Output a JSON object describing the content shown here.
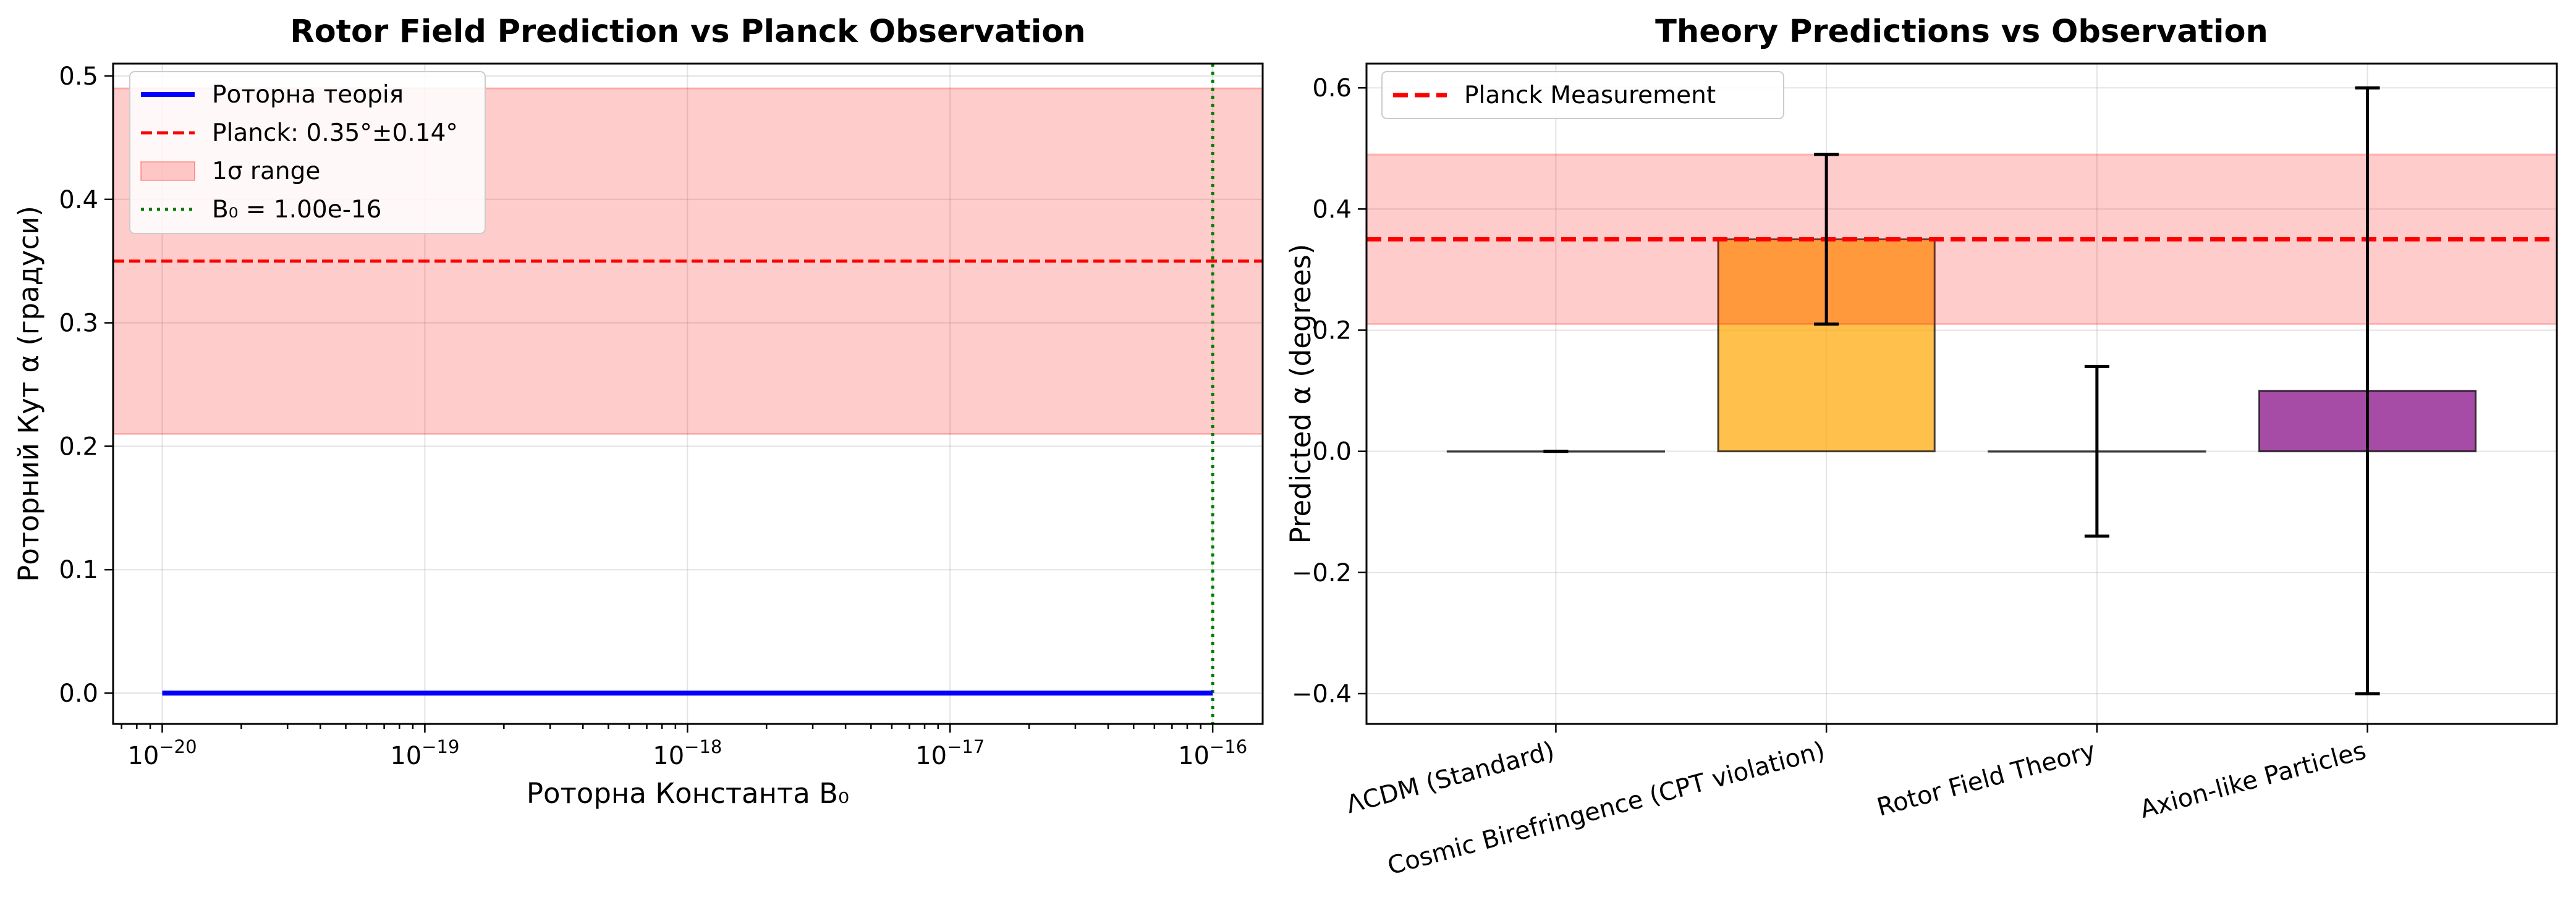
{
  "chart_data": [
    {
      "type": "line",
      "title": "Rotor Field Prediction vs Planck Observation",
      "xlabel": "Роторна Константа B₀",
      "ylabel": "Роторний Кут α (градуси)",
      "x_scale": "log",
      "xlim": [
        6.5e-21,
        1.55e-16
      ],
      "ylim": [
        -0.025,
        0.51
      ],
      "x_ticks": [
        {
          "value": 1e-20,
          "base": "10",
          "exp": "−20"
        },
        {
          "value": 1e-19,
          "base": "10",
          "exp": "−19"
        },
        {
          "value": 1e-18,
          "base": "10",
          "exp": "−18"
        },
        {
          "value": 1e-17,
          "base": "10",
          "exp": "−17"
        },
        {
          "value": 1e-16,
          "base": "10",
          "exp": "−16"
        }
      ],
      "y_ticks": [
        "0.0",
        "0.1",
        "0.2",
        "0.3",
        "0.4",
        "0.5"
      ],
      "grid": true,
      "legend_position": "top-left",
      "series": [
        {
          "name": "Роторна теорія",
          "x": [
            1e-20,
            1e-16
          ],
          "y": [
            0,
            0
          ],
          "color": "#0000ff",
          "style": "solid"
        }
      ],
      "planck_line": {
        "name": "Planck: 0.35°±0.14°",
        "y": 0.35,
        "color": "#ff0000",
        "style": "dashed"
      },
      "band": {
        "name": "1σ range",
        "y0": 0.21,
        "y1": 0.49,
        "color": "#ff0000",
        "alpha": 0.2
      },
      "vline": {
        "name": "B₀ = 1.00e-16",
        "x": 1e-16,
        "color": "#008000",
        "style": "dotted"
      }
    },
    {
      "type": "bar",
      "title": "Theory Predictions vs Observation",
      "xlabel": "",
      "ylabel": "Predicted α (degrees)",
      "ylim": [
        -0.45,
        0.64
      ],
      "y_ticks": [
        "−0.4",
        "−0.2",
        "0.0",
        "0.2",
        "0.4",
        "0.6"
      ],
      "grid": true,
      "legend_position": "top-left",
      "categories": [
        "ΛCDM (Standard)",
        "Cosmic Birefringence (CPT violation)",
        "Rotor Field Theory",
        "Axion-like Particles"
      ],
      "values": [
        0.0,
        0.35,
        0.0,
        0.1
      ],
      "errors": [
        0.0,
        0.14,
        0.14,
        0.5
      ],
      "colors": [
        "#1f77b4",
        "#ffa500",
        "#2ca02c",
        "#800080"
      ],
      "planck_line": {
        "name": "Planck Measurement",
        "y": 0.35,
        "color": "#ff0000",
        "style": "dashed"
      },
      "band": {
        "y0": 0.21,
        "y1": 0.49,
        "color": "#ff0000",
        "alpha": 0.2
      }
    }
  ]
}
